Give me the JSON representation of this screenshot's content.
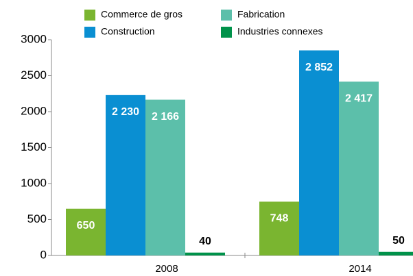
{
  "chart_data": {
    "type": "bar",
    "categories": [
      "2008",
      "2014"
    ],
    "series": [
      {
        "name": "Commerce de gros",
        "color": "#7ab530",
        "values": [
          650,
          748
        ]
      },
      {
        "name": "Construction",
        "color": "#0a8fd2",
        "values": [
          2230,
          2852
        ],
        "value_labels": [
          "2 230",
          "2 852"
        ]
      },
      {
        "name": "Fabrication",
        "color": "#5cbfaa",
        "values": [
          2166,
          2417
        ],
        "value_labels": [
          "2 166",
          "2 417"
        ]
      },
      {
        "name": "Industries connexes",
        "color": "#00924a",
        "values": [
          40,
          50
        ]
      }
    ],
    "ylim": [
      0,
      3000
    ],
    "yticks": [
      0,
      500,
      1000,
      1500,
      2000,
      2500,
      3000
    ],
    "grid": false
  }
}
